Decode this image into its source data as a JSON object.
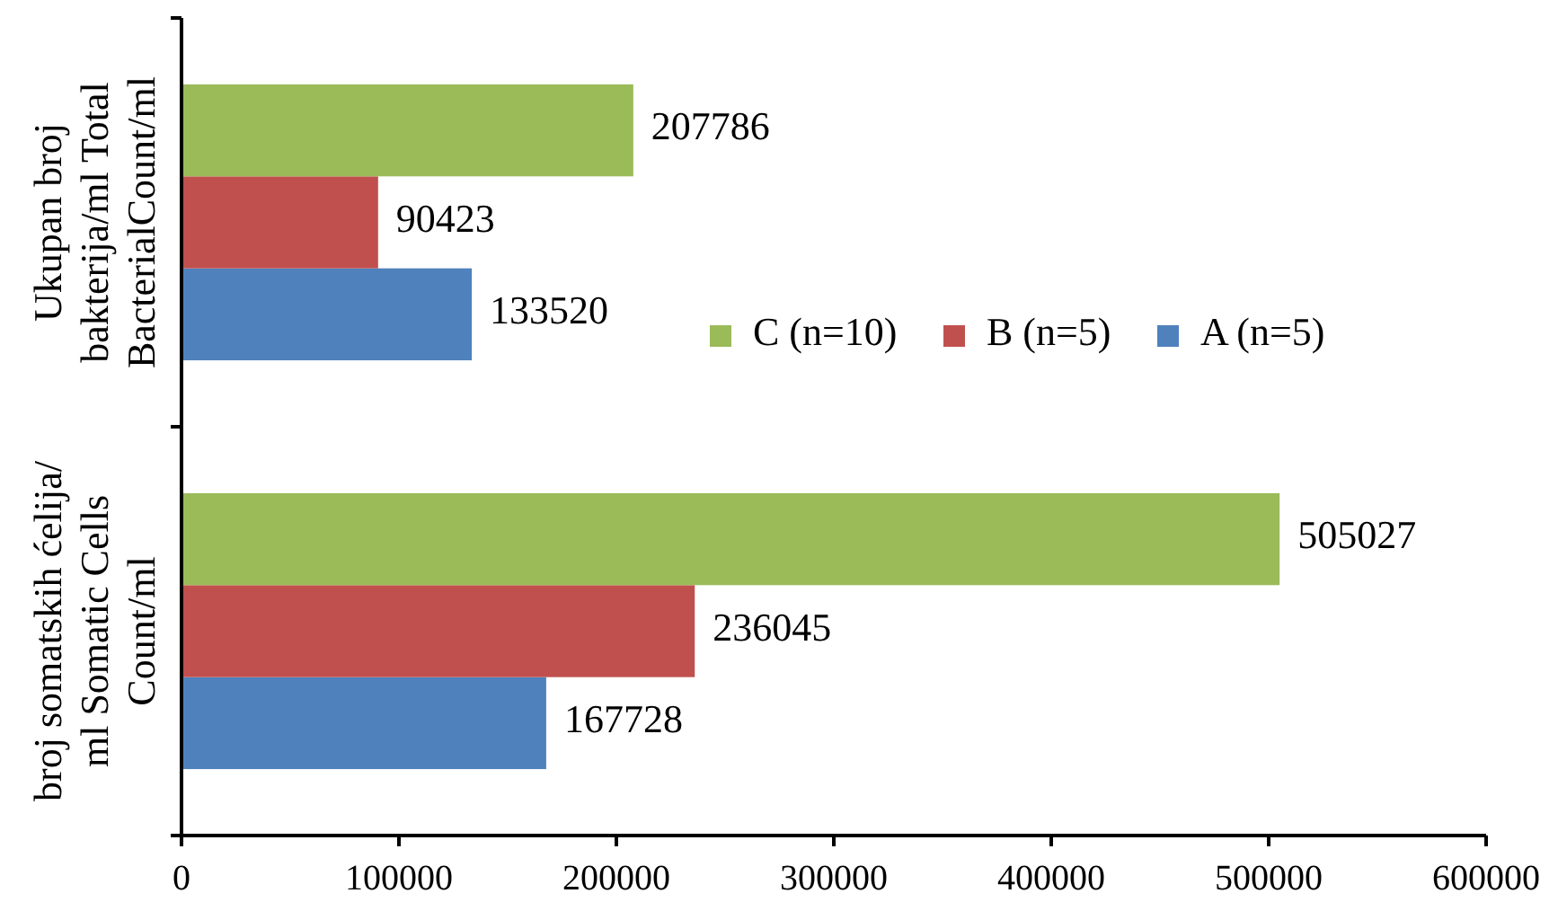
{
  "chart_data": {
    "type": "bar",
    "orientation": "horizontal",
    "categories": [
      "Ukupan broj bakterija/ml Total BacterialCount/ml",
      "broj somatskih ćelija/ ml Somatic Cells Count/ml"
    ],
    "series": [
      {
        "name": "A (n=5)",
        "color": "#4f81bd",
        "values": [
          133520,
          167728
        ]
      },
      {
        "name": "B (n=5)",
        "color": "#c0504d",
        "values": [
          90423,
          236045
        ]
      },
      {
        "name": "C (n=10)",
        "color": "#9bbb59",
        "values": [
          207786,
          505027
        ]
      }
    ],
    "xlim": [
      0,
      600000
    ],
    "xticks": [
      0,
      100000,
      200000,
      300000,
      400000,
      500000,
      600000
    ],
    "data_labels": true,
    "legend": "right",
    "grid": false
  }
}
